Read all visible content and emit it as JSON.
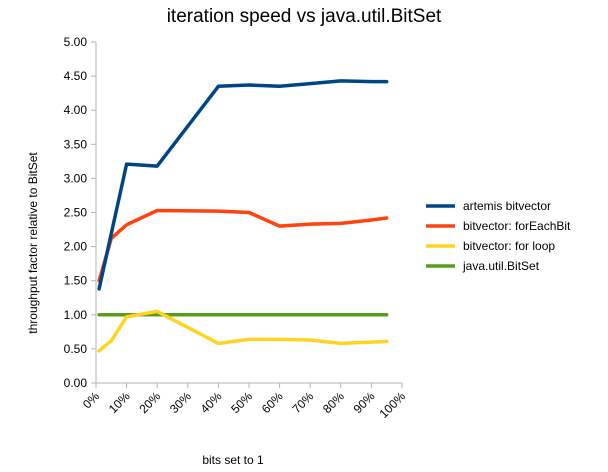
{
  "chart_data": {
    "type": "line",
    "title": "iteration speed vs java.util.BitSet",
    "xlabel": "bits set to 1",
    "ylabel": "throughput factor relative to BitSet",
    "x_ticks": [
      "0%",
      "10%",
      "20%",
      "30%",
      "40%",
      "50%",
      "60%",
      "70%",
      "80%",
      "90%",
      "100%"
    ],
    "xlim": [
      0,
      100
    ],
    "ylim": [
      0,
      5
    ],
    "y_ticks": [
      "0.00",
      "0.50",
      "1.00",
      "1.50",
      "2.00",
      "2.50",
      "3.00",
      "3.50",
      "4.00",
      "4.50",
      "5.00"
    ],
    "grid": false,
    "legend_position": "right",
    "series": [
      {
        "name": "artemis bitvector",
        "color": "#004586",
        "points": [
          [
            1,
            1.38
          ],
          [
            10,
            3.21
          ],
          [
            20,
            3.18
          ],
          [
            40,
            4.35
          ],
          [
            50,
            4.37
          ],
          [
            60,
            4.35
          ],
          [
            70,
            4.39
          ],
          [
            80,
            4.43
          ],
          [
            90,
            4.42
          ],
          [
            95,
            4.42
          ]
        ]
      },
      {
        "name": "bitvector: forEachBit",
        "color": "#ff420e",
        "points": [
          [
            1,
            1.5
          ],
          [
            5,
            2.12
          ],
          [
            10,
            2.32
          ],
          [
            20,
            2.53
          ],
          [
            40,
            2.52
          ],
          [
            50,
            2.5
          ],
          [
            60,
            2.3
          ],
          [
            70,
            2.33
          ],
          [
            80,
            2.34
          ],
          [
            90,
            2.39
          ],
          [
            95,
            2.42
          ]
        ]
      },
      {
        "name": "bitvector: for loop",
        "color": "#ffd320",
        "points": [
          [
            1,
            0.47
          ],
          [
            5,
            0.62
          ],
          [
            10,
            0.97
          ],
          [
            20,
            1.05
          ],
          [
            40,
            0.58
          ],
          [
            50,
            0.64
          ],
          [
            60,
            0.64
          ],
          [
            70,
            0.63
          ],
          [
            80,
            0.58
          ],
          [
            90,
            0.6
          ],
          [
            95,
            0.61
          ]
        ]
      },
      {
        "name": "java.util.BitSet",
        "color": "#579d1c",
        "points": [
          [
            1,
            1.0
          ],
          [
            10,
            1.0
          ],
          [
            20,
            1.0
          ],
          [
            40,
            1.0
          ],
          [
            50,
            1.0
          ],
          [
            60,
            1.0
          ],
          [
            70,
            1.0
          ],
          [
            80,
            1.0
          ],
          [
            90,
            1.0
          ],
          [
            95,
            1.0
          ]
        ]
      }
    ]
  }
}
